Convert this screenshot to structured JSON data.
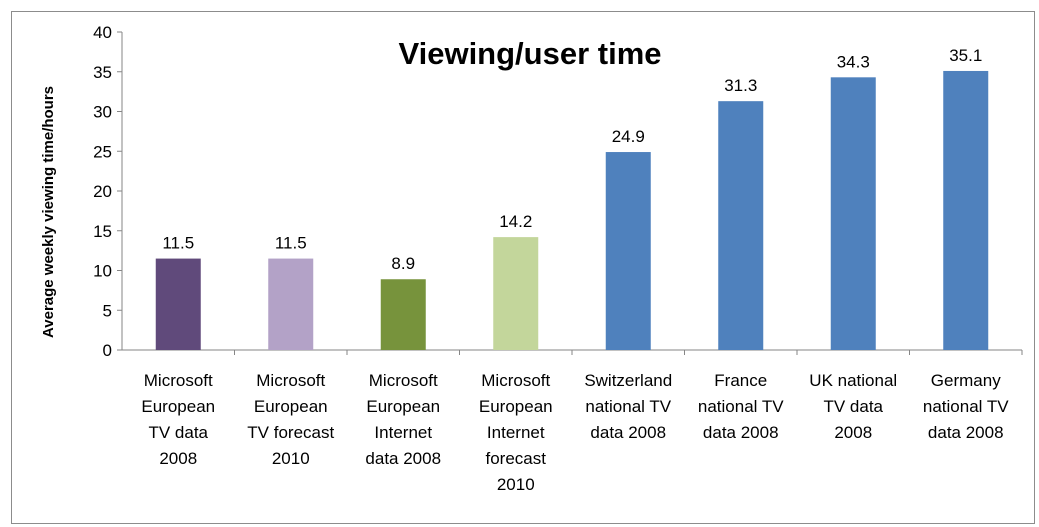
{
  "chart_data": {
    "type": "bar",
    "title": "Viewing/user time",
    "xlabel": "",
    "ylabel": "Average weekly viewing time/hours",
    "ylim": [
      0,
      40
    ],
    "yticks": [
      0,
      5,
      10,
      15,
      20,
      25,
      30,
      35,
      40
    ],
    "grid": false,
    "legend": "none",
    "categories": [
      "Microsoft European TV data 2008",
      "Microsoft European TV forecast 2010",
      "Microsoft European Internet data 2008",
      "Microsoft European Internet forecast 2010",
      "Switzerland national TV data 2008",
      "France national TV data 2008",
      "UK national TV data 2008",
      "Germany national TV data 2008"
    ],
    "category_lines": [
      [
        "Microsoft",
        "European",
        "TV data",
        "2008"
      ],
      [
        "Microsoft",
        "European",
        "TV forecast",
        "2010"
      ],
      [
        "Microsoft",
        "European",
        "Internet",
        "data 2008"
      ],
      [
        "Microsoft",
        "European",
        "Internet",
        "forecast",
        "2010"
      ],
      [
        "Switzerland",
        "national TV",
        "data 2008"
      ],
      [
        "France",
        "national TV",
        "data 2008"
      ],
      [
        "UK national",
        "TV data",
        "2008"
      ],
      [
        "Germany",
        "national TV",
        "data 2008"
      ]
    ],
    "values": [
      11.5,
      11.5,
      8.9,
      14.2,
      24.9,
      31.3,
      34.3,
      35.1
    ],
    "value_labels": [
      "11.5",
      "11.5",
      "8.9",
      "14.2",
      "24.9",
      "31.3",
      "34.3",
      "35.1"
    ],
    "colors": [
      "#604a7b",
      "#b3a2c7",
      "#77933c",
      "#c3d69b",
      "#4f81bd",
      "#4f81bd",
      "#4f81bd",
      "#4f81bd"
    ],
    "axis_color": "#868686"
  }
}
